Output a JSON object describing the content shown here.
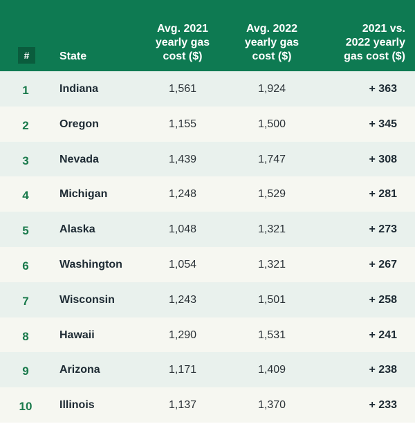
{
  "table": {
    "header": [
      "#",
      "State",
      "Avg. 2021 yearly gas cost ($)",
      "Avg. 2022 yearly gas cost ($)",
      "2021 vs. 2022 yearly gas cost ($)"
    ],
    "rows": [
      [
        "1",
        "Indiana",
        "1,561",
        "1,924",
        "+ 363"
      ],
      [
        "2",
        "Oregon",
        "1,155",
        "1,500",
        "+ 345"
      ],
      [
        "3",
        "Nevada",
        "1,439",
        "1,747",
        "+ 308"
      ],
      [
        "4",
        "Michigan",
        "1,248",
        "1,529",
        "+ 281"
      ],
      [
        "5",
        "Alaska",
        "1,048",
        "1,321",
        "+ 273"
      ],
      [
        "6",
        "Washington",
        "1,054",
        "1,321",
        "+ 267"
      ],
      [
        "7",
        "Wisconsin",
        "1,243",
        "1,501",
        "+ 258"
      ],
      [
        "8",
        "Hawaii",
        "1,290",
        "1,531",
        "+ 241"
      ],
      [
        "9",
        "Arizona",
        "1,171",
        "1,409",
        "+ 238"
      ],
      [
        "10",
        "Illinois",
        "1,137",
        "1,370",
        "+ 233"
      ]
    ]
  }
}
